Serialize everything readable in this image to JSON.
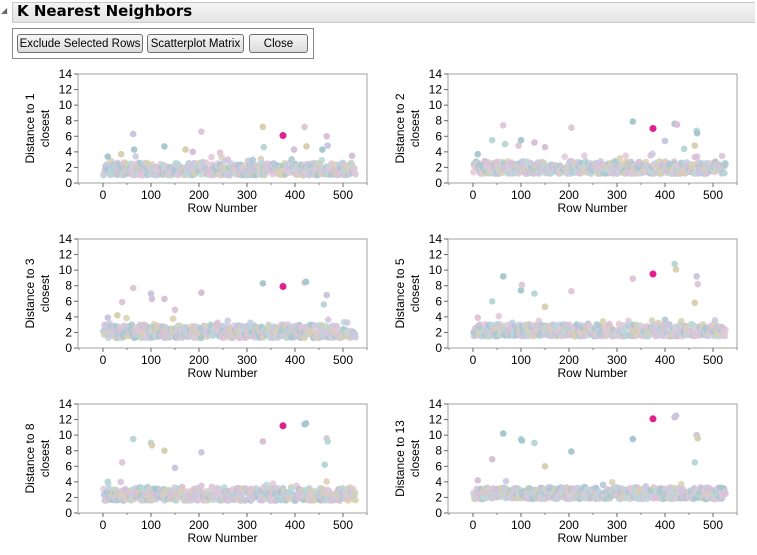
{
  "header": {
    "title": "K Nearest Neighbors"
  },
  "buttons": {
    "exclude": "Exclude Selected Rows",
    "matrix": "Scatterplot Matrix",
    "close": "Close"
  },
  "colors": {
    "selected": "#e0208f",
    "palette": [
      "#d8c0d8",
      "#b8d8d8",
      "#d8d0b0",
      "#c8c8e0",
      "#e0c8d8",
      "#a8c8d0"
    ]
  },
  "chart_data": [
    {
      "type": "scatter",
      "ylabel": [
        "Distance to 1",
        "closest"
      ],
      "xlabel": "Row Number",
      "xticks": [
        0,
        100,
        200,
        300,
        400,
        500
      ],
      "yticks": [
        0,
        2,
        4,
        6,
        8,
        10,
        12,
        14
      ],
      "xlim": [
        -52,
        550
      ],
      "ylim": [
        0,
        14
      ],
      "n_rows": 526,
      "band": [
        1.0,
        2.6
      ],
      "outliers": [
        [
          10,
          3.4
        ],
        [
          38,
          3.7
        ],
        [
          63,
          6.3
        ],
        [
          65,
          4.3
        ],
        [
          128,
          4.7
        ],
        [
          172,
          4.3
        ],
        [
          187,
          4.0
        ],
        [
          205,
          6.6
        ],
        [
          244,
          3.9
        ],
        [
          333,
          7.2
        ],
        [
          335,
          4.6
        ],
        [
          398,
          4.3
        ],
        [
          420,
          7.2
        ],
        [
          424,
          4.7
        ],
        [
          457,
          4.3
        ],
        [
          466,
          6.0
        ],
        [
          468,
          4.8
        ],
        [
          519,
          3.5
        ]
      ],
      "selected": [
        [
          375,
          6.1
        ]
      ]
    },
    {
      "type": "scatter",
      "ylabel": [
        "Distance to 2",
        "closest"
      ],
      "xlabel": "Row Number",
      "xticks": [
        0,
        100,
        200,
        300,
        400,
        500
      ],
      "yticks": [
        0,
        2,
        4,
        6,
        8,
        10,
        12,
        14
      ],
      "xlim": [
        -52,
        550
      ],
      "ylim": [
        0,
        14
      ],
      "n_rows": 526,
      "band": [
        1.2,
        2.8
      ],
      "outliers": [
        [
          10,
          3.7
        ],
        [
          40,
          5.5
        ],
        [
          63,
          7.4
        ],
        [
          67,
          5.0
        ],
        [
          95,
          4.8
        ],
        [
          100,
          5.5
        ],
        [
          128,
          5.2
        ],
        [
          150,
          4.6
        ],
        [
          205,
          7.1
        ],
        [
          333,
          7.9
        ],
        [
          400,
          5.4
        ],
        [
          420,
          7.6
        ],
        [
          425,
          7.5
        ],
        [
          440,
          4.4
        ],
        [
          462,
          4.8
        ],
        [
          466,
          6.7
        ],
        [
          467,
          6.4
        ]
      ],
      "selected": [
        [
          375,
          7.0
        ]
      ]
    },
    {
      "type": "scatter",
      "ylabel": [
        "Distance to 3",
        "closest"
      ],
      "xlabel": "Row Number",
      "xticks": [
        0,
        100,
        200,
        300,
        400,
        500
      ],
      "yticks": [
        0,
        2,
        4,
        6,
        8,
        10,
        12,
        14
      ],
      "xlim": [
        -52,
        550
      ],
      "ylim": [
        0,
        14
      ],
      "n_rows": 526,
      "band": [
        1.3,
        3.0
      ],
      "outliers": [
        [
          10,
          3.9
        ],
        [
          30,
          4.2
        ],
        [
          40,
          5.9
        ],
        [
          63,
          7.7
        ],
        [
          100,
          7.0
        ],
        [
          102,
          6.3
        ],
        [
          128,
          6.3
        ],
        [
          150,
          4.9
        ],
        [
          205,
          7.1
        ],
        [
          333,
          8.3
        ],
        [
          420,
          8.4
        ],
        [
          423,
          8.5
        ],
        [
          460,
          5.6
        ],
        [
          466,
          6.8
        ]
      ],
      "selected": [
        [
          375,
          7.9
        ]
      ]
    },
    {
      "type": "scatter",
      "ylabel": [
        "Distance to 5",
        "closest"
      ],
      "xlabel": "Row Number",
      "xticks": [
        0,
        100,
        200,
        300,
        400,
        500
      ],
      "yticks": [
        0,
        2,
        4,
        6,
        8,
        10,
        12,
        14
      ],
      "xlim": [
        -52,
        550
      ],
      "ylim": [
        0,
        14
      ],
      "n_rows": 526,
      "band": [
        1.5,
        3.1
      ],
      "outliers": [
        [
          10,
          3.9
        ],
        [
          40,
          6.0
        ],
        [
          63,
          9.2
        ],
        [
          100,
          7.4
        ],
        [
          102,
          8.1
        ],
        [
          128,
          7.0
        ],
        [
          150,
          5.3
        ],
        [
          205,
          7.3
        ],
        [
          333,
          8.9
        ],
        [
          420,
          10.8
        ],
        [
          423,
          10.1
        ],
        [
          462,
          5.8
        ],
        [
          466,
          9.2
        ],
        [
          468,
          8.2
        ]
      ],
      "selected": [
        [
          375,
          9.5
        ]
      ]
    },
    {
      "type": "scatter",
      "ylabel": [
        "Distance to 8",
        "closest"
      ],
      "xlabel": "Row Number",
      "xticks": [
        0,
        100,
        200,
        300,
        400,
        500
      ],
      "yticks": [
        0,
        2,
        4,
        6,
        8,
        10,
        12,
        14
      ],
      "xlim": [
        -52,
        550
      ],
      "ylim": [
        0,
        14
      ],
      "n_rows": 526,
      "band": [
        1.6,
        3.2
      ],
      "outliers": [
        [
          10,
          4.0
        ],
        [
          40,
          6.5
        ],
        [
          63,
          9.5
        ],
        [
          100,
          9.0
        ],
        [
          102,
          8.7
        ],
        [
          128,
          8.0
        ],
        [
          150,
          5.8
        ],
        [
          205,
          7.8
        ],
        [
          333,
          9.2
        ],
        [
          420,
          11.4
        ],
        [
          423,
          11.5
        ],
        [
          462,
          6.2
        ],
        [
          466,
          9.6
        ],
        [
          468,
          9.2
        ]
      ],
      "selected": [
        [
          375,
          11.2
        ]
      ]
    },
    {
      "type": "scatter",
      "ylabel": [
        "Distance to 13",
        "closest"
      ],
      "xlabel": "Row Number",
      "xticks": [
        0,
        100,
        200,
        300,
        400,
        500
      ],
      "yticks": [
        0,
        2,
        4,
        6,
        8,
        10,
        12,
        14
      ],
      "xlim": [
        -52,
        550
      ],
      "ylim": [
        0,
        14
      ],
      "n_rows": 526,
      "band": [
        1.8,
        3.3
      ],
      "outliers": [
        [
          10,
          4.2
        ],
        [
          40,
          6.9
        ],
        [
          63,
          10.2
        ],
        [
          100,
          9.5
        ],
        [
          102,
          9.3
        ],
        [
          128,
          9.0
        ],
        [
          150,
          6.0
        ],
        [
          205,
          7.9
        ],
        [
          333,
          9.5
        ],
        [
          420,
          12.3
        ],
        [
          423,
          12.5
        ],
        [
          462,
          6.5
        ],
        [
          466,
          10.0
        ],
        [
          468,
          9.6
        ]
      ],
      "selected": [
        [
          375,
          12.1
        ]
      ]
    }
  ]
}
